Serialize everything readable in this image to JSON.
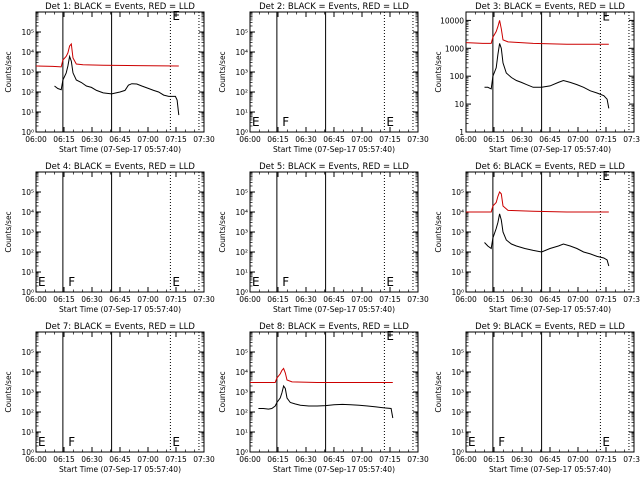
{
  "figure": {
    "xlabel": "Start Time (07-Sep-17 05:57:40)",
    "ylabel": "Counts/sec",
    "x_tick_labels": [
      "06:00",
      "06:15",
      "06:30",
      "06:45",
      "07:00",
      "07:15",
      "07:30"
    ],
    "colors": {
      "events": "#000000",
      "lld": "#cc0000",
      "axes": "#000000"
    }
  },
  "chart_data": [
    {
      "type": "line",
      "title": "Det 1: BLACK = Events, RED = LLD",
      "xlim": [
        0,
        100
      ],
      "yscale": "log",
      "ylim": [
        1,
        1000000
      ],
      "y_tick_labels": [
        "10⁰",
        "10¹",
        "10²",
        "10³",
        "10⁴",
        "10⁵"
      ],
      "markers": {
        "solid": [
          16,
          45
        ],
        "dotted": [
          80,
          97
        ]
      },
      "letters": [
        {
          "text": "E",
          "x": 80,
          "y": 400000
        }
      ],
      "series": [
        {
          "name": "events",
          "values": [
            [
              11,
              200
            ],
            [
              13,
              150
            ],
            [
              15,
              130
            ],
            [
              16,
              400
            ],
            [
              18,
              900
            ],
            [
              19,
              2000
            ],
            [
              20,
              6000
            ],
            [
              21,
              3500
            ],
            [
              22,
              900
            ],
            [
              24,
              400
            ],
            [
              27,
              300
            ],
            [
              30,
              200
            ],
            [
              33,
              170
            ],
            [
              36,
              120
            ],
            [
              40,
              90
            ],
            [
              45,
              80
            ],
            [
              50,
              100
            ],
            [
              53,
              120
            ],
            [
              55,
              220
            ],
            [
              57,
              260
            ],
            [
              60,
              250
            ],
            [
              63,
              200
            ],
            [
              67,
              150
            ],
            [
              70,
              120
            ],
            [
              73,
              100
            ],
            [
              76,
              70
            ],
            [
              79,
              60
            ],
            [
              83,
              60
            ],
            [
              84,
              40
            ],
            [
              85,
              7
            ]
          ]
        },
        {
          "name": "lld",
          "values": [
            [
              0,
              2000
            ],
            [
              10,
              1900
            ],
            [
              15,
              1800
            ],
            [
              16,
              4000
            ],
            [
              18,
              6000
            ],
            [
              19,
              9000
            ],
            [
              20,
              20000
            ],
            [
              21,
              25000
            ],
            [
              22,
              5000
            ],
            [
              24,
              2500
            ],
            [
              28,
              2300
            ],
            [
              40,
              2200
            ],
            [
              60,
              2100
            ],
            [
              85,
              2000
            ]
          ]
        }
      ]
    },
    {
      "type": "line",
      "title": "Det 2: BLACK = Events, RED = LLD",
      "xlim": [
        0,
        100
      ],
      "yscale": "log",
      "ylim": [
        1,
        1000000
      ],
      "y_tick_labels": [
        "10⁰",
        "10¹",
        "10²",
        "10³",
        "10⁴",
        "10⁵"
      ],
      "markers": {
        "solid": [
          16,
          45
        ],
        "dotted": [
          80,
          97
        ]
      },
      "letters": [
        {
          "text": "E",
          "x": 0,
          "y": 2
        },
        {
          "text": "F",
          "x": 18,
          "y": 2
        },
        {
          "text": "E",
          "x": 80,
          "y": 2
        }
      ],
      "series": []
    },
    {
      "type": "line",
      "title": "Det 3: BLACK = Events, RED = LLD",
      "xlim": [
        0,
        100
      ],
      "yscale": "log",
      "ylim": [
        1,
        20000
      ],
      "y_tick_labels": [
        "1",
        "10",
        "100",
        "1000",
        "10000"
      ],
      "markers": {
        "solid": [
          16,
          45
        ],
        "dotted": [
          80,
          97
        ]
      },
      "letters": [
        {
          "text": "E",
          "x": 80,
          "y": 10000
        }
      ],
      "series": [
        {
          "name": "events",
          "values": [
            [
              11,
              40
            ],
            [
              13,
              40
            ],
            [
              15,
              35
            ],
            [
              16,
              100
            ],
            [
              18,
              200
            ],
            [
              19,
              600
            ],
            [
              20,
              1500
            ],
            [
              21,
              1000
            ],
            [
              22,
              300
            ],
            [
              24,
              130
            ],
            [
              27,
              90
            ],
            [
              30,
              70
            ],
            [
              33,
              60
            ],
            [
              36,
              50
            ],
            [
              40,
              40
            ],
            [
              45,
              40
            ],
            [
              50,
              45
            ],
            [
              55,
              60
            ],
            [
              58,
              70
            ],
            [
              62,
              60
            ],
            [
              66,
              50
            ],
            [
              70,
              40
            ],
            [
              74,
              30
            ],
            [
              78,
              25
            ],
            [
              82,
              20
            ],
            [
              84,
              15
            ],
            [
              85,
              7
            ]
          ]
        },
        {
          "name": "lld",
          "values": [
            [
              0,
              1600
            ],
            [
              10,
              1500
            ],
            [
              15,
              1500
            ],
            [
              16,
              2500
            ],
            [
              18,
              4000
            ],
            [
              19,
              6000
            ],
            [
              20,
              10000
            ],
            [
              21,
              5000
            ],
            [
              22,
              2000
            ],
            [
              25,
              1700
            ],
            [
              40,
              1500
            ],
            [
              60,
              1400
            ],
            [
              85,
              1400
            ]
          ]
        }
      ]
    },
    {
      "type": "line",
      "title": "Det 4: BLACK = Events, RED = LLD",
      "xlim": [
        0,
        100
      ],
      "yscale": "log",
      "ylim": [
        1,
        1000000
      ],
      "y_tick_labels": [
        "10⁰",
        "10¹",
        "10²",
        "10³",
        "10⁴",
        "10⁵"
      ],
      "markers": {
        "solid": [
          16,
          45
        ],
        "dotted": [
          80,
          97
        ]
      },
      "letters": [
        {
          "text": "E",
          "x": 0,
          "y": 2
        },
        {
          "text": "F",
          "x": 18,
          "y": 2
        },
        {
          "text": "E",
          "x": 80,
          "y": 2
        }
      ],
      "series": []
    },
    {
      "type": "line",
      "title": "Det 5: BLACK = Events, RED = LLD",
      "xlim": [
        0,
        100
      ],
      "yscale": "log",
      "ylim": [
        1,
        1000000
      ],
      "y_tick_labels": [
        "10⁰",
        "10¹",
        "10²",
        "10³",
        "10⁴",
        "10⁵"
      ],
      "markers": {
        "solid": [
          16,
          45
        ],
        "dotted": [
          80,
          97
        ]
      },
      "letters": [
        {
          "text": "E",
          "x": 0,
          "y": 2
        },
        {
          "text": "F",
          "x": 18,
          "y": 2
        },
        {
          "text": "E",
          "x": 80,
          "y": 2
        }
      ],
      "series": []
    },
    {
      "type": "line",
      "title": "Det 6: BLACK = Events, RED = LLD",
      "xlim": [
        0,
        100
      ],
      "yscale": "log",
      "ylim": [
        1,
        1000000
      ],
      "y_tick_labels": [
        "10⁰",
        "10¹",
        "10²",
        "10³",
        "10⁴",
        "10⁵"
      ],
      "markers": {
        "solid": [
          16,
          45
        ],
        "dotted": [
          80,
          97
        ]
      },
      "letters": [
        {
          "text": "E",
          "x": 80,
          "y": 400000
        }
      ],
      "series": [
        {
          "name": "events",
          "values": [
            [
              11,
              300
            ],
            [
              13,
              200
            ],
            [
              15,
              150
            ],
            [
              16,
              500
            ],
            [
              18,
              1500
            ],
            [
              19,
              3000
            ],
            [
              20,
              8000
            ],
            [
              21,
              4000
            ],
            [
              22,
              1000
            ],
            [
              24,
              400
            ],
            [
              27,
              250
            ],
            [
              30,
              200
            ],
            [
              35,
              150
            ],
            [
              40,
              120
            ],
            [
              45,
              100
            ],
            [
              50,
              150
            ],
            [
              55,
              200
            ],
            [
              58,
              250
            ],
            [
              62,
              200
            ],
            [
              66,
              150
            ],
            [
              70,
              100
            ],
            [
              74,
              80
            ],
            [
              78,
              60
            ],
            [
              82,
              50
            ],
            [
              84,
              40
            ],
            [
              85,
              20
            ]
          ]
        },
        {
          "name": "lld",
          "values": [
            [
              0,
              10000
            ],
            [
              10,
              10000
            ],
            [
              15,
              10000
            ],
            [
              16,
              20000
            ],
            [
              18,
              30000
            ],
            [
              19,
              60000
            ],
            [
              20,
              100000
            ],
            [
              21,
              80000
            ],
            [
              22,
              20000
            ],
            [
              25,
              12000
            ],
            [
              40,
              11000
            ],
            [
              60,
              10000
            ],
            [
              85,
              10000
            ]
          ]
        }
      ]
    },
    {
      "type": "line",
      "title": "Det 7: BLACK = Events, RED = LLD",
      "xlim": [
        0,
        100
      ],
      "yscale": "log",
      "ylim": [
        1,
        1000000
      ],
      "y_tick_labels": [
        "10⁰",
        "10¹",
        "10²",
        "10³",
        "10⁴",
        "10⁵"
      ],
      "markers": {
        "solid": [
          16,
          45
        ],
        "dotted": [
          80,
          97
        ]
      },
      "letters": [
        {
          "text": "E",
          "x": 0,
          "y": 2
        },
        {
          "text": "F",
          "x": 18,
          "y": 2
        },
        {
          "text": "E",
          "x": 80,
          "y": 2
        }
      ],
      "series": []
    },
    {
      "type": "line",
      "title": "Det 8: BLACK = Events, RED = LLD",
      "xlim": [
        0,
        100
      ],
      "yscale": "log",
      "ylim": [
        1,
        1000000
      ],
      "y_tick_labels": [
        "10⁰",
        "10¹",
        "10²",
        "10³",
        "10⁴",
        "10⁵"
      ],
      "markers": {
        "solid": [
          16,
          45
        ],
        "dotted": [
          80,
          97
        ]
      },
      "letters": [
        {
          "text": "E",
          "x": 80,
          "y": 400000
        }
      ],
      "series": [
        {
          "name": "events",
          "values": [
            [
              5,
              150
            ],
            [
              8,
              150
            ],
            [
              11,
              140
            ],
            [
              13,
              150
            ],
            [
              15,
              200
            ],
            [
              16,
              300
            ],
            [
              18,
              500
            ],
            [
              19,
              900
            ],
            [
              20,
              2000
            ],
            [
              21,
              1500
            ],
            [
              22,
              500
            ],
            [
              24,
              300
            ],
            [
              27,
              250
            ],
            [
              30,
              220
            ],
            [
              35,
              200
            ],
            [
              40,
              200
            ],
            [
              45,
              210
            ],
            [
              50,
              230
            ],
            [
              55,
              240
            ],
            [
              60,
              230
            ],
            [
              65,
              220
            ],
            [
              70,
              200
            ],
            [
              75,
              180
            ],
            [
              80,
              160
            ],
            [
              84,
              150
            ],
            [
              85,
              50
            ]
          ]
        },
        {
          "name": "lld",
          "values": [
            [
              0,
              3000
            ],
            [
              10,
              3000
            ],
            [
              15,
              3000
            ],
            [
              16,
              5000
            ],
            [
              18,
              8000
            ],
            [
              19,
              12000
            ],
            [
              20,
              15000
            ],
            [
              21,
              9000
            ],
            [
              22,
              4000
            ],
            [
              25,
              3200
            ],
            [
              40,
              3000
            ],
            [
              60,
              3000
            ],
            [
              85,
              3000
            ]
          ]
        }
      ]
    },
    {
      "type": "line",
      "title": "Det 9: BLACK = Events, RED = LLD",
      "xlim": [
        0,
        100
      ],
      "yscale": "log",
      "ylim": [
        1,
        1000000
      ],
      "y_tick_labels": [
        "10⁰",
        "10¹",
        "10²",
        "10³",
        "10⁴",
        "10⁵"
      ],
      "markers": {
        "solid": [
          16,
          45
        ],
        "dotted": [
          80,
          97
        ]
      },
      "letters": [
        {
          "text": "E",
          "x": 0,
          "y": 2
        },
        {
          "text": "F",
          "x": 18,
          "y": 2
        },
        {
          "text": "E",
          "x": 80,
          "y": 2
        }
      ],
      "series": []
    }
  ]
}
